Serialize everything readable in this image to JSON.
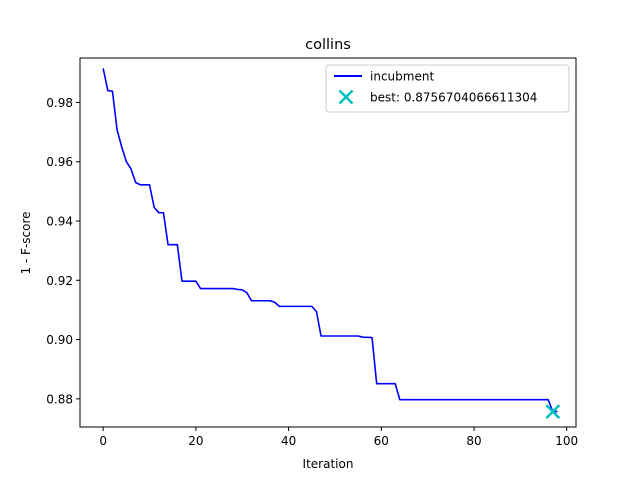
{
  "chart_data": {
    "type": "line",
    "title": "collins",
    "xlabel": "Iteration",
    "ylabel": "1 - F-score",
    "xlim": [
      -5,
      102
    ],
    "ylim": [
      0.8705,
      0.995
    ],
    "grid": false,
    "legend_position": "upper right",
    "x_ticks": [
      0,
      20,
      40,
      60,
      80,
      100
    ],
    "x_tick_labels": [
      "0",
      "20",
      "40",
      "60",
      "80",
      "100"
    ],
    "y_ticks": [
      0.88,
      0.9,
      0.92,
      0.94,
      0.96,
      0.98
    ],
    "y_tick_labels": [
      "0.88",
      "0.90",
      "0.92",
      "0.94",
      "0.96",
      "0.98"
    ],
    "series": [
      {
        "name": "incubment",
        "color": "#0000ff",
        "x": [
          0,
          1,
          2,
          3,
          4,
          5,
          6,
          7,
          8,
          10,
          11,
          12,
          13,
          14,
          16,
          17,
          19,
          20,
          21,
          28,
          29,
          30,
          31,
          32,
          36,
          37,
          38,
          45,
          46,
          47,
          55,
          56,
          58,
          59,
          63,
          64,
          96,
          97,
          98
        ],
        "y": [
          0.9915,
          0.984,
          0.9838,
          0.9708,
          0.965,
          0.96,
          0.9576,
          0.953,
          0.9522,
          0.9522,
          0.9446,
          0.9428,
          0.9428,
          0.932,
          0.932,
          0.9197,
          0.9197,
          0.9197,
          0.9172,
          0.9172,
          0.9169,
          0.9168,
          0.9158,
          0.9131,
          0.9131,
          0.9126,
          0.9112,
          0.9112,
          0.9095,
          0.9012,
          0.9012,
          0.9008,
          0.9007,
          0.8851,
          0.8851,
          0.8797,
          0.8797,
          0.8757,
          0.8757
        ]
      }
    ],
    "best_point": {
      "label": "best: 0.8756704066611304",
      "x": 97,
      "y": 0.8756704066611304,
      "color": "#00bfbf",
      "marker": "x"
    }
  }
}
